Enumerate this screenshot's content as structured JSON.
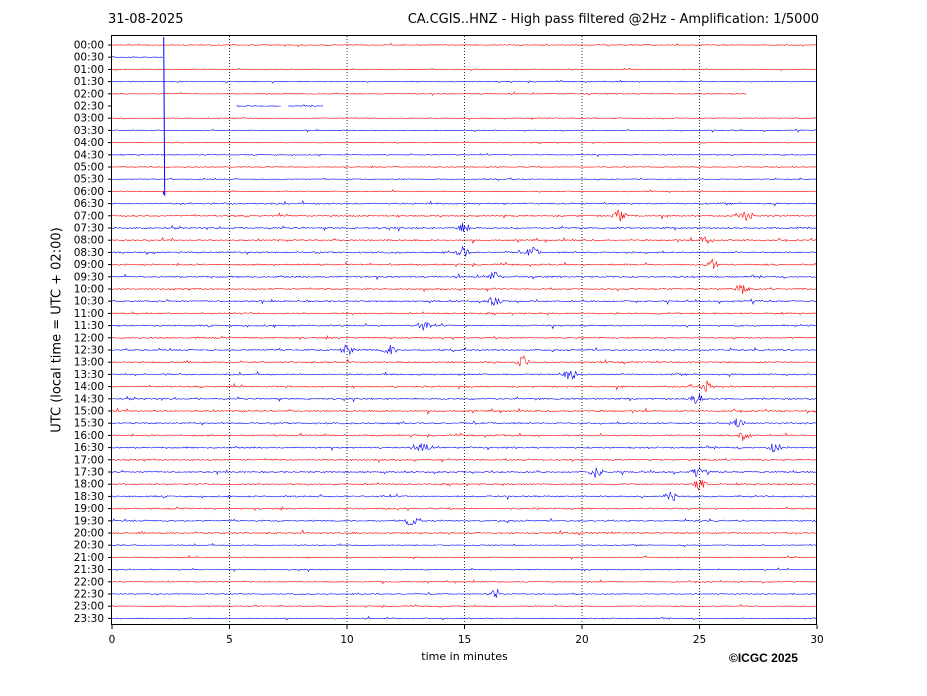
{
  "header": {
    "date": "31-08-2025",
    "title": "CA.CGIS..HNZ - High pass filtered @2Hz - Amplification: 1/5000"
  },
  "footer": {
    "copyright": "©ICGC 2025"
  },
  "chart_data": {
    "type": "line",
    "title": "CA.CGIS..HNZ - High pass filtered @2Hz - Amplification: 1/5000",
    "xlabel": "time in minutes",
    "ylabel": "UTC (local time = UTC + 02:00)",
    "xlim": [
      0,
      30
    ],
    "x_ticks": [
      "0",
      "5",
      "10",
      "15",
      "20",
      "25",
      "30"
    ],
    "x_tick_values": [
      0,
      5,
      10,
      15,
      20,
      25,
      30
    ],
    "grid": "vertical dotted at 5-minute intervals",
    "trace_colors": [
      "#ff0000",
      "#0000ff"
    ],
    "rows": [
      "00:00",
      "00:30",
      "01:00",
      "01:30",
      "02:00",
      "02:30",
      "03:00",
      "03:30",
      "04:00",
      "04:30",
      "05:00",
      "05:30",
      "06:00",
      "06:30",
      "07:00",
      "07:30",
      "08:00",
      "08:30",
      "09:00",
      "09:30",
      "10:00",
      "10:30",
      "11:00",
      "11:30",
      "12:00",
      "12:30",
      "13:00",
      "13:30",
      "14:00",
      "14:30",
      "15:00",
      "15:30",
      "16:00",
      "16:30",
      "17:00",
      "17:30",
      "18:00",
      "18:30",
      "19:00",
      "19:30",
      "20:00",
      "20:30",
      "21:00",
      "21:30",
      "22:00",
      "22:30",
      "23:00",
      "23:30"
    ],
    "series": [
      {
        "row": "00:30",
        "gap_minutes": [
          [
            2.2,
            30
          ]
        ],
        "spike_minute": 2.2
      },
      {
        "row": "02:00",
        "end_minute": 27.0
      },
      {
        "row": "02:30",
        "segments": [
          [
            5.3,
            7.2
          ],
          [
            7.5,
            9.0
          ]
        ]
      },
      {
        "row": "07:00",
        "events": [
          21.6,
          27.0
        ]
      },
      {
        "row": "07:30",
        "events": [
          15.0
        ]
      },
      {
        "row": "08:00",
        "events": [
          25.3
        ]
      },
      {
        "row": "08:30",
        "events": [
          14.9,
          17.9
        ]
      },
      {
        "row": "09:00",
        "events": [
          25.5
        ]
      },
      {
        "row": "09:30",
        "events": [
          16.3
        ]
      },
      {
        "row": "10:00",
        "events": [
          26.8
        ]
      },
      {
        "row": "10:30",
        "events": [
          16.3
        ]
      },
      {
        "row": "11:30",
        "events": [
          13.3
        ]
      },
      {
        "row": "12:30",
        "events": [
          10.0,
          11.8
        ]
      },
      {
        "row": "13:00",
        "events": [
          17.5
        ]
      },
      {
        "row": "13:30",
        "events": [
          19.5
        ]
      },
      {
        "row": "14:00",
        "events": [
          25.3
        ]
      },
      {
        "row": "14:30",
        "events": [
          24.9
        ]
      },
      {
        "row": "15:30",
        "events": [
          26.6
        ]
      },
      {
        "row": "16:00",
        "events": [
          26.9
        ]
      },
      {
        "row": "16:30",
        "events": [
          28.2,
          13.2
        ]
      },
      {
        "row": "17:30",
        "events": [
          20.6,
          24.9
        ]
      },
      {
        "row": "18:00",
        "events": [
          25.0
        ]
      },
      {
        "row": "18:30",
        "events": [
          23.8
        ]
      },
      {
        "row": "19:30",
        "events": [
          12.7
        ]
      },
      {
        "row": "22:30",
        "events": [
          16.3
        ]
      }
    ]
  }
}
